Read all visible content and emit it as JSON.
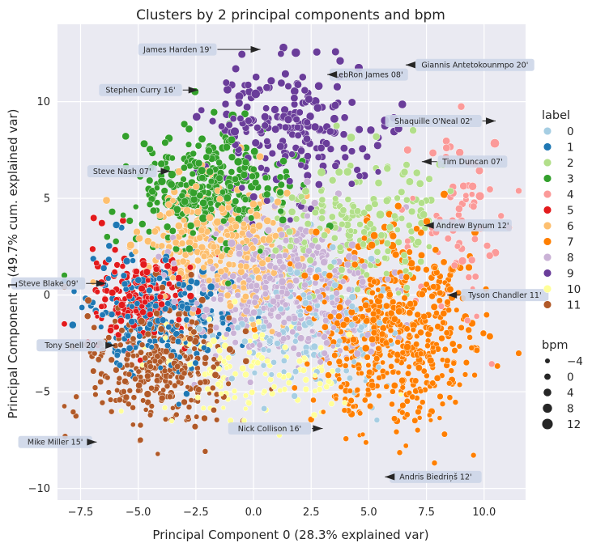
{
  "chart_data": {
    "type": "scatter",
    "title": "Clusters by 2 principal components and bpm",
    "xlabel": "Principal Component 0 (28.3% explained var)",
    "ylabel": "Principal Component 1 (49.7% cum. explained var)",
    "xlim": [
      -8.5,
      11.8
    ],
    "ylim": [
      -10.6,
      14.0
    ],
    "xticks": [
      -7.5,
      -5.0,
      -2.5,
      0.0,
      2.5,
      5.0,
      7.5,
      10.0
    ],
    "xtick_labels": [
      "−7.5",
      "−5.0",
      "−2.5",
      "0.0",
      "2.5",
      "5.0",
      "7.5",
      "10.0"
    ],
    "yticks": [
      -10,
      -5,
      0,
      5,
      10
    ],
    "ytick_labels": [
      "−10",
      "−5",
      "0",
      "5",
      "10"
    ],
    "grid": true,
    "legend_position": "right",
    "hue_legend": {
      "title": "label",
      "entries": [
        "0",
        "1",
        "2",
        "3",
        "4",
        "5",
        "6",
        "7",
        "8",
        "9",
        "10",
        "11"
      ],
      "colors": [
        "#a6cee3",
        "#1f78b4",
        "#b2df8a",
        "#33a02c",
        "#fb9a99",
        "#e31a1c",
        "#fdbf6f",
        "#ff7f00",
        "#cab2d6",
        "#6a3d9a",
        "#ffff99",
        "#b15928"
      ]
    },
    "size_legend": {
      "title": "bpm",
      "entries": [
        "−4",
        "0",
        "4",
        "8",
        "12"
      ],
      "values": [
        -4,
        0,
        4,
        8,
        12
      ]
    },
    "clusters": [
      {
        "label": 0,
        "center": [
          2.5,
          -1.5
        ],
        "spread": [
          2.0,
          2.0
        ],
        "n": 180
      },
      {
        "label": 1,
        "center": [
          -4.0,
          -1.0
        ],
        "spread": [
          1.6,
          1.6
        ],
        "n": 260
      },
      {
        "label": 2,
        "center": [
          4.5,
          3.5
        ],
        "spread": [
          1.8,
          1.8
        ],
        "n": 220
      },
      {
        "label": 3,
        "center": [
          -2.0,
          5.5
        ],
        "spread": [
          1.6,
          1.6
        ],
        "n": 320
      },
      {
        "label": 4,
        "center": [
          9.0,
          3.0
        ],
        "spread": [
          1.2,
          2.5
        ],
        "n": 70
      },
      {
        "label": 5,
        "center": [
          -5.0,
          0.0
        ],
        "spread": [
          1.1,
          1.5
        ],
        "n": 190
      },
      {
        "label": 6,
        "center": [
          -1.5,
          2.5
        ],
        "spread": [
          1.8,
          1.8
        ],
        "n": 330
      },
      {
        "label": 7,
        "center": [
          6.0,
          -2.0
        ],
        "spread": [
          1.8,
          2.4
        ],
        "n": 560
      },
      {
        "label": 8,
        "center": [
          1.5,
          0.5
        ],
        "spread": [
          2.0,
          1.8
        ],
        "n": 500
      },
      {
        "label": 9,
        "center": [
          1.5,
          8.5
        ],
        "spread": [
          1.8,
          1.7
        ],
        "n": 220
      },
      {
        "label": 10,
        "center": [
          -0.5,
          -4.0
        ],
        "spread": [
          2.2,
          1.5
        ],
        "n": 140
      },
      {
        "label": 11,
        "center": [
          -4.0,
          -3.5
        ],
        "spread": [
          1.6,
          1.6
        ],
        "n": 340
      }
    ],
    "annotations": [
      {
        "text": "James Harden 19'",
        "point": [
          0.3,
          12.7
        ],
        "text_pos": [
          -3.3,
          12.7
        ]
      },
      {
        "text": "LebRon James 08'",
        "point": [
          3.2,
          11.4
        ],
        "text_pos": [
          5.0,
          11.4
        ]
      },
      {
        "text": "Giannis Antetokounmpo 20'",
        "point": [
          6.6,
          11.9
        ],
        "text_pos": [
          9.6,
          11.9
        ]
      },
      {
        "text": "Stephen Curry 16'",
        "point": [
          -2.4,
          10.6
        ],
        "text_pos": [
          -4.9,
          10.6
        ]
      },
      {
        "text": "Shaquille O'Neal 02'",
        "point": [
          10.5,
          9.0
        ],
        "text_pos": [
          7.8,
          9.0
        ]
      },
      {
        "text": "Tim Duncan 07'",
        "point": [
          7.3,
          6.9
        ],
        "text_pos": [
          9.5,
          6.9
        ]
      },
      {
        "text": "Steve Nash 07'",
        "point": [
          -3.6,
          6.4
        ],
        "text_pos": [
          -5.7,
          6.4
        ]
      },
      {
        "text": "Andrew Bynum 12'",
        "point": [
          7.4,
          3.6
        ],
        "text_pos": [
          9.5,
          3.6
        ]
      },
      {
        "text": "Steve Blake 09'",
        "point": [
          -6.4,
          0.6
        ],
        "text_pos": [
          -8.9,
          0.6
        ]
      },
      {
        "text": "Tyson Chandler 11'",
        "point": [
          8.4,
          0.0
        ],
        "text_pos": [
          10.9,
          0.0
        ]
      },
      {
        "text": "Tony Snell 20'",
        "point": [
          -6.0,
          -2.6
        ],
        "text_pos": [
          -7.9,
          -2.6
        ]
      },
      {
        "text": "Nick Collison 16'",
        "point": [
          3.0,
          -6.9
        ],
        "text_pos": [
          0.7,
          -6.9
        ]
      },
      {
        "text": "Mike Miller 15'",
        "point": [
          -6.8,
          -7.6
        ],
        "text_pos": [
          -8.6,
          -7.6
        ]
      },
      {
        "text": "Andris Biedriņš 12'",
        "point": [
          5.7,
          -9.4
        ],
        "text_pos": [
          7.9,
          -9.4
        ]
      }
    ]
  }
}
